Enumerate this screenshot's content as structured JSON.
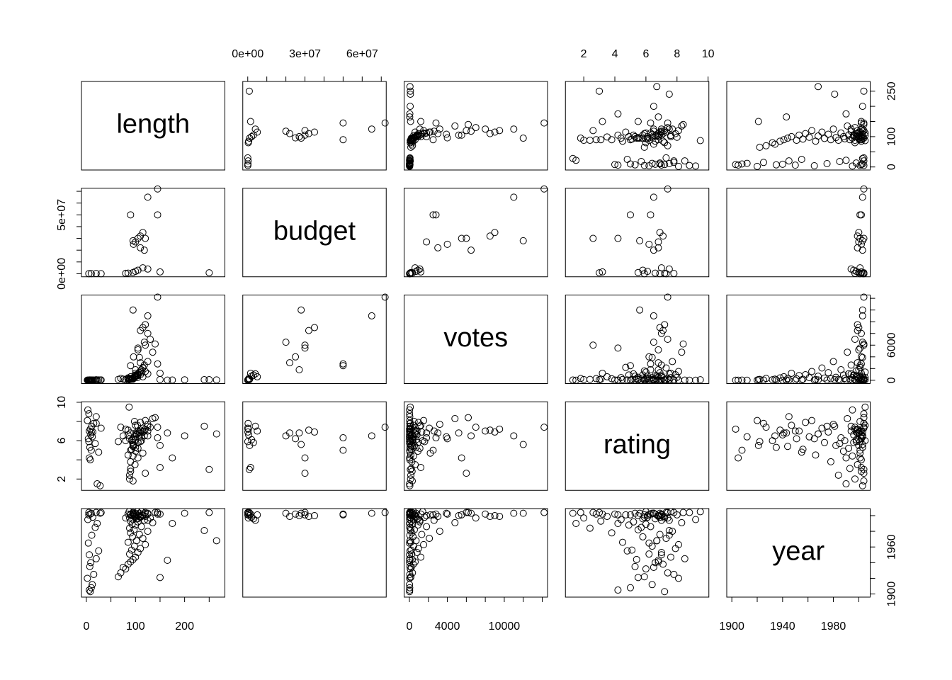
{
  "chart_data": {
    "type": "pairs",
    "variables": [
      {
        "name": "length",
        "lim": [
          -10,
          282
        ],
        "ticks": [
          0,
          50,
          100,
          150,
          200,
          250
        ]
      },
      {
        "name": "budget",
        "lim": [
          -2600000,
          72600000
        ],
        "ticks": [
          {
            "value": 0,
            "label": "0e+00"
          },
          10000000,
          20000000,
          {
            "value": 30000000,
            "label": "3e+07"
          },
          40000000,
          {
            "value": 50000000,
            "label": "5e+07"
          },
          {
            "value": 60000000,
            "label": "6e+07"
          },
          70000000
        ]
      },
      {
        "name": "votes",
        "lim": [
          -560,
          14560
        ],
        "ticks": [
          0,
          2000,
          4000,
          6000,
          8000,
          10000,
          12000,
          14000
        ]
      },
      {
        "name": "rating",
        "lim": [
          0.82,
          10.05
        ],
        "ticks": [
          2,
          4,
          6,
          8,
          10
        ]
      },
      {
        "name": "year",
        "lim": [
          1896,
          2009
        ],
        "ticks": [
          1900,
          1920,
          1940,
          1960,
          1980,
          2000
        ]
      }
    ],
    "rows": [
      [
        145,
        72000000,
        14200,
        7.4,
        2004
      ],
      [
        125,
        65000000,
        11000,
        6.5,
        2003
      ],
      [
        90,
        50000000,
        2500,
        5.0,
        2001
      ],
      [
        145,
        50000000,
        2800,
        6.3,
        2002
      ],
      [
        115,
        35000000,
        9000,
        6.9,
        2000
      ],
      [
        110,
        32000000,
        8500,
        7.1,
        1999
      ],
      [
        95,
        28000000,
        12000,
        5.6,
        2003
      ],
      [
        100,
        27000000,
        1800,
        6.8,
        2000
      ],
      [
        105,
        30000000,
        5500,
        4.2,
        2001
      ],
      [
        120,
        30000000,
        6000,
        2.6,
        2004
      ],
      [
        96,
        25000000,
        4000,
        6.2,
        2002
      ],
      [
        110,
        22000000,
        3000,
        6.8,
        1999
      ],
      [
        118,
        20000000,
        6500,
        6.5,
        2003
      ],
      [
        105,
        3000000,
        900,
        5.8,
        1996
      ],
      [
        100,
        2000000,
        700,
        6.1,
        1998
      ],
      [
        115,
        5000000,
        600,
        7.0,
        2001
      ],
      [
        125,
        4000000,
        1100,
        7.5,
        1994
      ],
      [
        95,
        1000000,
        200,
        5.5,
        2000
      ],
      [
        85,
        500000,
        300,
        6.6,
        2002
      ],
      [
        80,
        300000,
        100,
        7.2,
        1997
      ],
      [
        10,
        100000,
        40,
        6.9,
        2003
      ],
      [
        5,
        50000,
        15,
        5.9,
        2001
      ],
      [
        20,
        200000,
        90,
        7.8,
        2004
      ],
      [
        150,
        1500000,
        1200,
        3.2,
        2002
      ],
      [
        250,
        800000,
        100,
        3.0,
        2004
      ],
      [
        30,
        20000,
        60,
        7.3,
        2004
      ],
      [
        8,
        null,
        15,
        7.2,
        1903
      ],
      [
        6,
        null,
        22,
        4.2,
        1905
      ],
      [
        10,
        null,
        30,
        5.0,
        1908
      ],
      [
        12,
        null,
        10,
        6.4,
        1912
      ],
      [
        2,
        null,
        25,
        8.1,
        1920
      ],
      [
        15,
        null,
        40,
        7.8,
        1925
      ],
      [
        7,
        null,
        55,
        5.3,
        1935
      ],
      [
        9,
        null,
        18,
        6.6,
        1940
      ],
      [
        20,
        null,
        35,
        8.5,
        1945
      ],
      [
        6,
        null,
        12,
        7.0,
        1950
      ],
      [
        25,
        null,
        60,
        4.8,
        1955
      ],
      [
        4,
        null,
        8,
        6.2,
        1965
      ],
      [
        11,
        null,
        45,
        7.5,
        1975
      ],
      [
        18,
        null,
        20,
        5.7,
        1985
      ],
      [
        3,
        null,
        14,
        9.2,
        1995
      ],
      [
        13,
        null,
        30,
        6.9,
        1998
      ],
      [
        8,
        null,
        50,
        4.0,
        2002
      ],
      [
        5,
        null,
        18,
        8.8,
        2004
      ],
      [
        22,
        null,
        12,
        1.5,
        1990
      ],
      [
        28,
        null,
        40,
        1.3,
        2003
      ],
      [
        65,
        null,
        150,
        5.9,
        1922
      ],
      [
        70,
        null,
        320,
        7.4,
        1927
      ],
      [
        80,
        null,
        90,
        6.0,
        1932
      ],
      [
        75,
        null,
        200,
        6.5,
        1934
      ],
      [
        85,
        null,
        410,
        7.1,
        1938
      ],
      [
        90,
        null,
        600,
        6.8,
        1941
      ],
      [
        95,
        null,
        300,
        5.4,
        1944
      ],
      [
        100,
        null,
        1200,
        7.6,
        1947
      ],
      [
        88,
        null,
        250,
        6.2,
        1951
      ],
      [
        105,
        null,
        800,
        7.0,
        1953
      ],
      [
        92,
        null,
        180,
        5.1,
        1956
      ],
      [
        110,
        null,
        950,
        7.9,
        1958
      ],
      [
        98,
        null,
        450,
        6.4,
        1961
      ],
      [
        120,
        null,
        1500,
        8.1,
        1963
      ],
      [
        85,
        null,
        140,
        4.5,
        1966
      ],
      [
        102,
        null,
        700,
        6.7,
        1968
      ],
      [
        115,
        null,
        2100,
        7.3,
        1971
      ],
      [
        94,
        null,
        380,
        5.8,
        1973
      ],
      [
        108,
        null,
        1300,
        6.9,
        1976
      ],
      [
        90,
        null,
        260,
        3.8,
        1978
      ],
      [
        125,
        null,
        3200,
        7.7,
        1980
      ],
      [
        97,
        null,
        520,
        5.5,
        1982
      ],
      [
        88,
        null,
        150,
        2.4,
        1984
      ],
      [
        112,
        null,
        1800,
        6.3,
        1986
      ],
      [
        100,
        null,
        900,
        4.9,
        1988
      ],
      [
        93,
        null,
        330,
        6.0,
        1989
      ],
      [
        135,
        null,
        4800,
        8.3,
        1991
      ],
      [
        105,
        null,
        1100,
        5.2,
        1992
      ],
      [
        90,
        null,
        200,
        3.1,
        1993
      ],
      [
        118,
        null,
        2600,
        7.0,
        1994
      ],
      [
        95,
        null,
        450,
        4.4,
        1995
      ],
      [
        102,
        null,
        800,
        6.6,
        1996
      ],
      [
        88,
        null,
        120,
        2.0,
        1997
      ],
      [
        130,
        null,
        7000,
        7.4,
        1997
      ],
      [
        110,
        null,
        1600,
        5.9,
        1998
      ],
      [
        99,
        null,
        600,
        3.5,
        1999
      ],
      [
        120,
        null,
        9500,
        7.2,
        1999
      ],
      [
        93,
        null,
        350,
        6.1,
        2000
      ],
      [
        105,
        null,
        5200,
        6.8,
        2000
      ],
      [
        115,
        null,
        2200,
        4.7,
        2001
      ],
      [
        98,
        null,
        500,
        8.0,
        2001
      ],
      [
        125,
        null,
        8000,
        7.0,
        2002
      ],
      [
        90,
        null,
        280,
        2.8,
        2002
      ],
      [
        108,
        null,
        3900,
        6.4,
        2003
      ],
      [
        100,
        null,
        700,
        5.3,
        2003
      ],
      [
        140,
        null,
        6200,
        8.4,
        2004
      ],
      [
        95,
        null,
        300,
        1.8,
        2004
      ],
      [
        112,
        null,
        1400,
        6.0,
        2005
      ],
      [
        87,
        null,
        90,
        9.5,
        2005
      ],
      [
        104,
        null,
        450,
        7.6,
        2005
      ],
      [
        165,
        null,
        30,
        6.8,
        1943
      ],
      [
        200,
        null,
        80,
        6.5,
        2003
      ],
      [
        240,
        null,
        100,
        7.5,
        1981
      ],
      [
        265,
        null,
        60,
        6.7,
        1968
      ],
      [
        175,
        null,
        40,
        4.2,
        1990
      ],
      [
        150,
        null,
        120,
        5.5,
        1921
      ]
    ]
  }
}
